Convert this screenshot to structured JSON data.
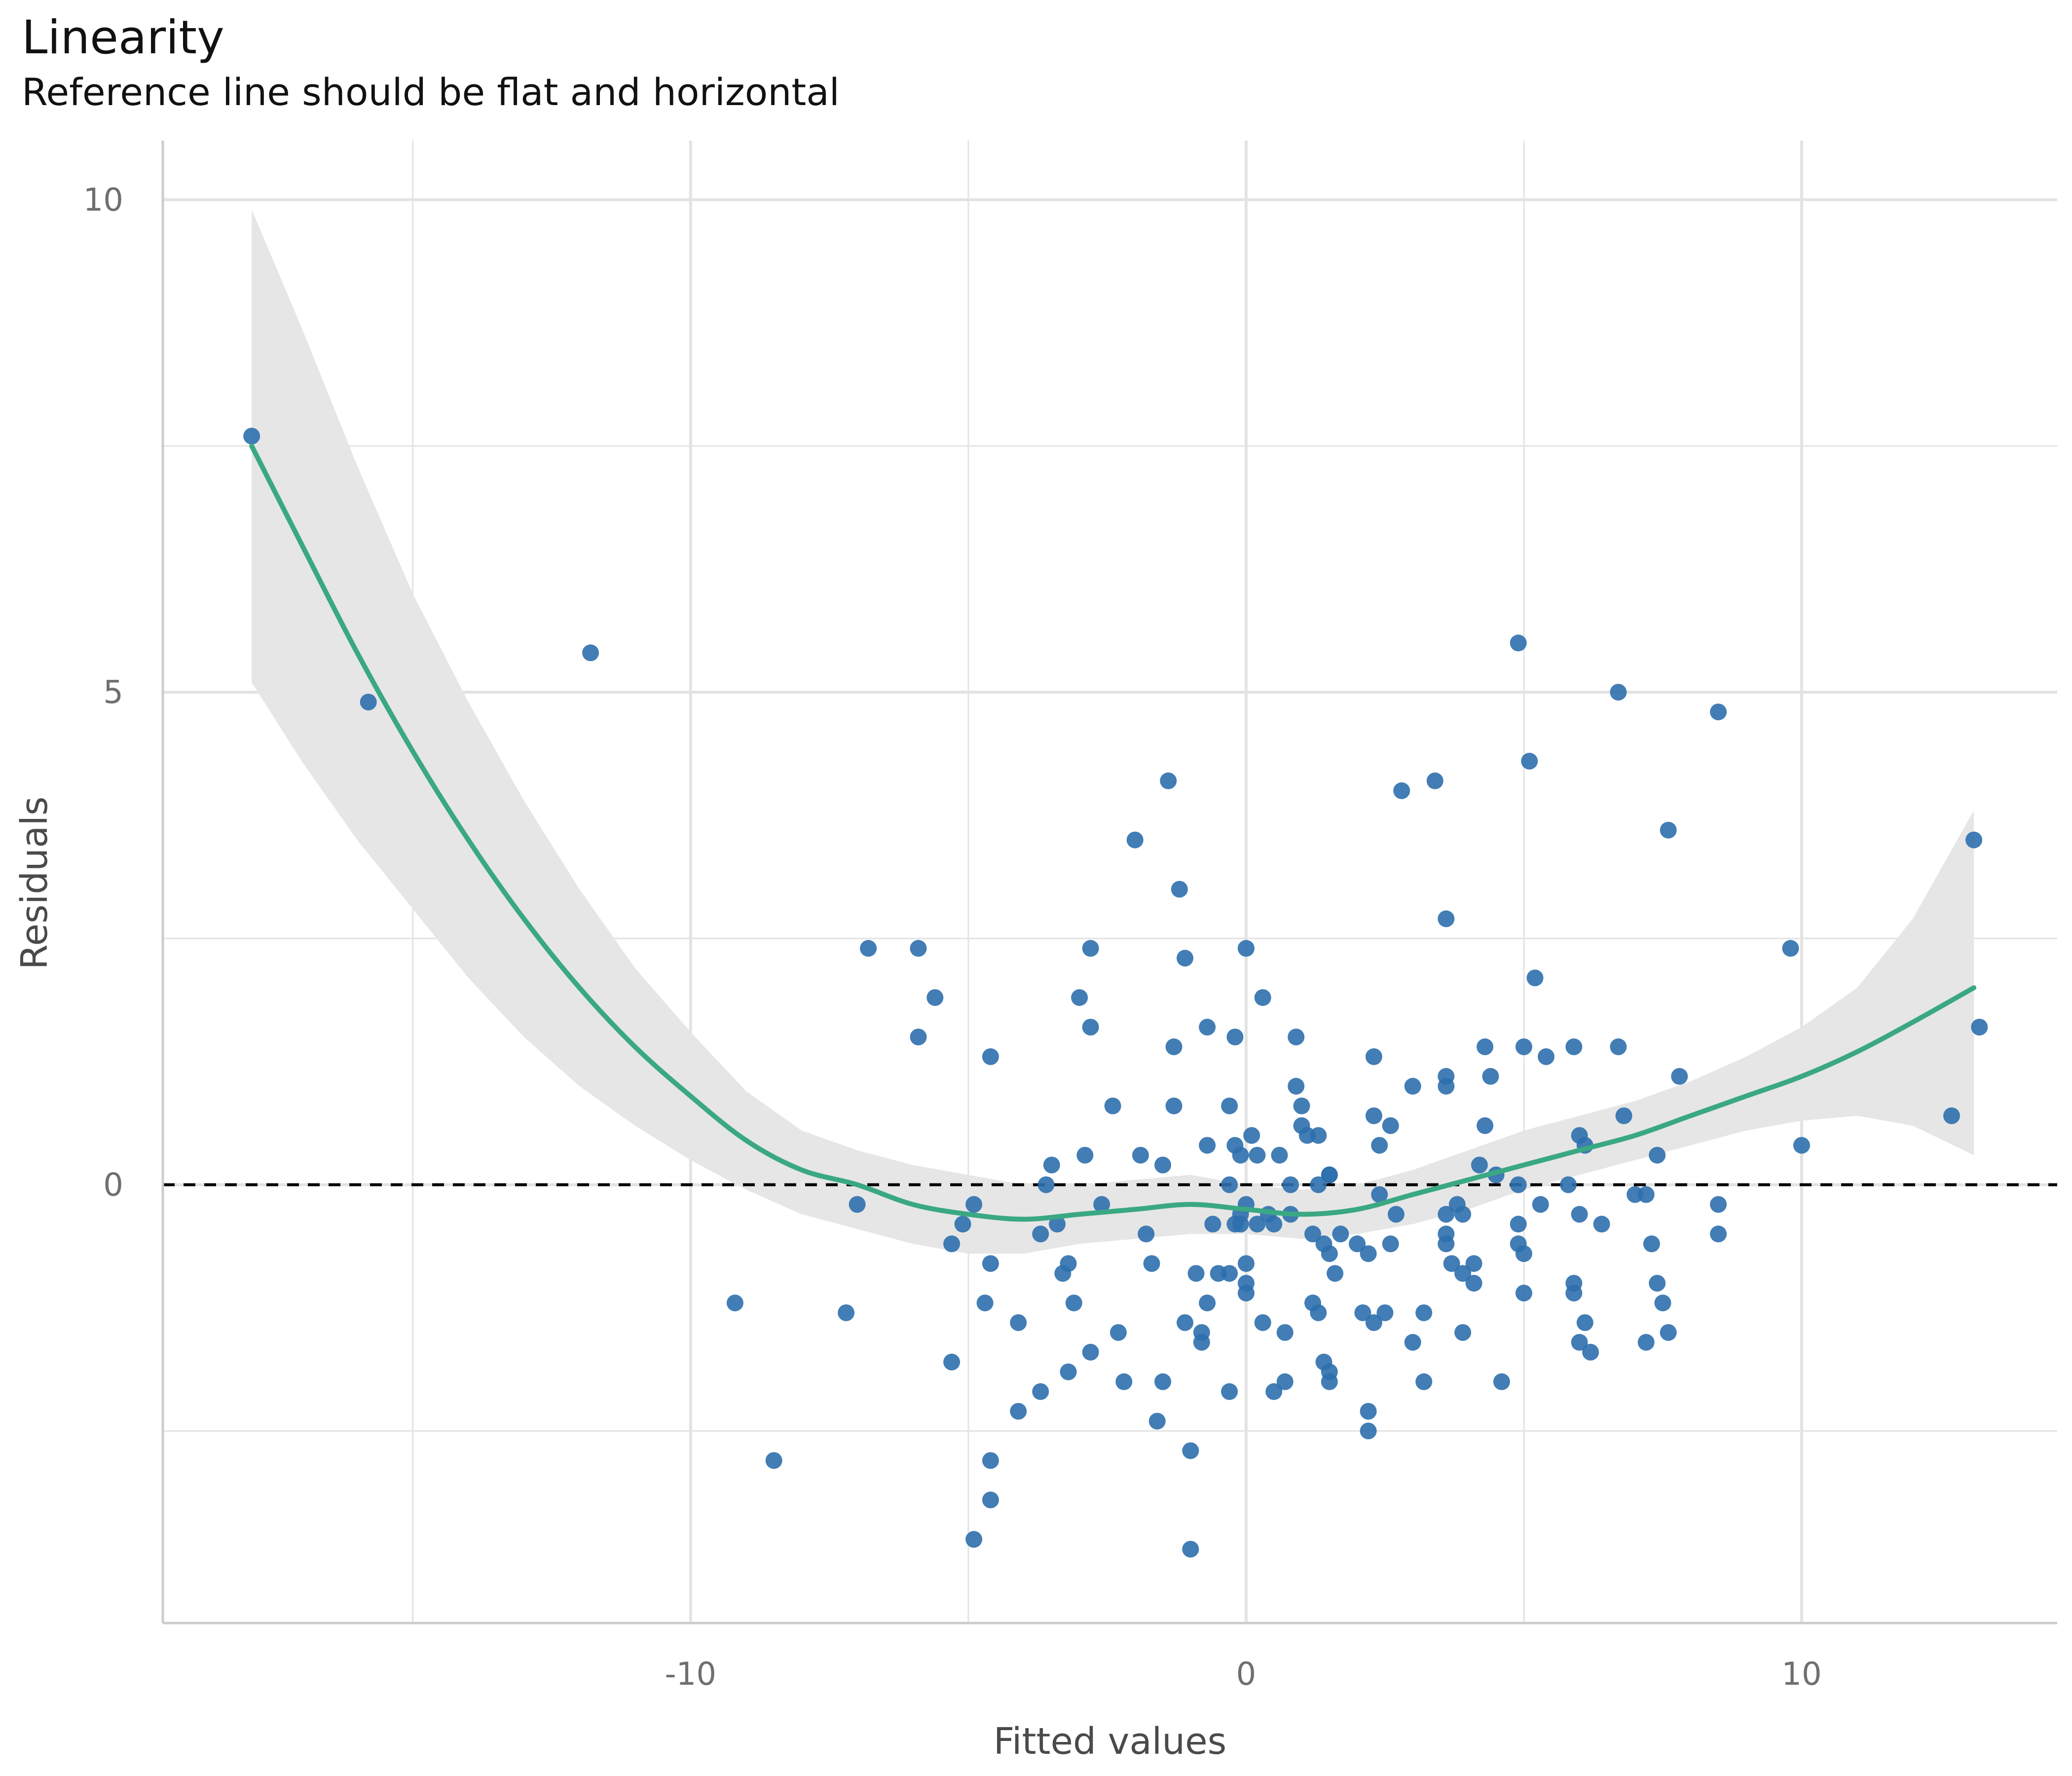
{
  "chart_data": {
    "type": "scatter",
    "title": "Linearity",
    "subtitle": "Reference line should be flat and horizontal",
    "xlabel": "Fitted values",
    "ylabel": "Residuals",
    "xlim": [
      -19.5,
      14.6
    ],
    "ylim": [
      -4.45,
      10.6
    ],
    "x_ticks": [
      -10,
      0,
      10
    ],
    "x_tick_labels": [
      "-10",
      "0",
      "10"
    ],
    "y_ticks": [
      0,
      5,
      10
    ],
    "y_tick_labels": [
      "0",
      "5",
      "10"
    ],
    "x_minor": [
      -15,
      -5,
      5
    ],
    "y_minor": [
      -2.5,
      2.5,
      7.5
    ],
    "grid": true,
    "reference_line_y": 0,
    "colors": {
      "points": "#2e6fad",
      "smooth": "#3aa882",
      "band": "#e6e6e6",
      "grid": "#e3e3e3",
      "reference": "#000000"
    },
    "points": [
      [
        -17.9,
        7.6
      ],
      [
        -15.8,
        4.9
      ],
      [
        -11.8,
        5.4
      ],
      [
        -9.2,
        -1.2
      ],
      [
        -8.5,
        -2.8
      ],
      [
        -7.2,
        -1.3
      ],
      [
        -7.0,
        -0.2
      ],
      [
        -6.8,
        2.4
      ],
      [
        -5.9,
        2.4
      ],
      [
        -5.9,
        1.5
      ],
      [
        -5.6,
        1.9
      ],
      [
        -5.3,
        -0.6
      ],
      [
        -5.3,
        -1.8
      ],
      [
        -5.1,
        -0.4
      ],
      [
        -4.9,
        -0.2
      ],
      [
        -4.9,
        -3.6
      ],
      [
        -4.7,
        -1.2
      ],
      [
        -4.6,
        1.3
      ],
      [
        -4.6,
        -0.8
      ],
      [
        -4.6,
        -2.8
      ],
      [
        -4.6,
        -3.2
      ],
      [
        -4.1,
        -2.3
      ],
      [
        -4.1,
        -1.4
      ],
      [
        -3.7,
        -0.5
      ],
      [
        -3.7,
        -2.1
      ],
      [
        -3.6,
        0.0
      ],
      [
        -3.5,
        0.2
      ],
      [
        -3.4,
        -0.4
      ],
      [
        -3.3,
        -0.9
      ],
      [
        -3.2,
        -0.8
      ],
      [
        -3.2,
        -1.9
      ],
      [
        -3.1,
        -1.2
      ],
      [
        -3.0,
        1.9
      ],
      [
        -2.9,
        0.3
      ],
      [
        -2.8,
        2.4
      ],
      [
        -2.8,
        1.6
      ],
      [
        -2.8,
        -1.7
      ],
      [
        -2.6,
        -0.2
      ],
      [
        -2.4,
        0.8
      ],
      [
        -2.3,
        -1.5
      ],
      [
        -2.2,
        -2.0
      ],
      [
        -2.0,
        3.5
      ],
      [
        -1.9,
        0.3
      ],
      [
        -1.8,
        -0.5
      ],
      [
        -1.7,
        -0.8
      ],
      [
        -1.6,
        -2.4
      ],
      [
        -1.5,
        -2.0
      ],
      [
        -1.5,
        0.2
      ],
      [
        -1.4,
        4.1
      ],
      [
        -1.3,
        1.4
      ],
      [
        -1.3,
        0.8
      ],
      [
        -1.2,
        3.0
      ],
      [
        -1.1,
        2.3
      ],
      [
        -1.1,
        -1.4
      ],
      [
        -1.0,
        -2.7
      ],
      [
        -1.0,
        -3.7
      ],
      [
        -0.9,
        -0.9
      ],
      [
        -0.8,
        -1.5
      ],
      [
        -0.8,
        -1.6
      ],
      [
        -0.7,
        1.6
      ],
      [
        -0.7,
        0.4
      ],
      [
        -0.7,
        -1.2
      ],
      [
        -0.6,
        -0.4
      ],
      [
        -0.5,
        -0.9
      ],
      [
        -0.3,
        0.8
      ],
      [
        -0.3,
        0.0
      ],
      [
        -0.3,
        -0.9
      ],
      [
        -0.3,
        -2.1
      ],
      [
        -0.2,
        0.4
      ],
      [
        -0.2,
        -0.4
      ],
      [
        -0.2,
        1.5
      ],
      [
        -0.1,
        0.3
      ],
      [
        -0.1,
        -0.3
      ],
      [
        -0.1,
        -0.4
      ],
      [
        0.0,
        -0.2
      ],
      [
        0.0,
        -0.8
      ],
      [
        0.0,
        -1.1
      ],
      [
        0.0,
        -1.0
      ],
      [
        0.0,
        2.4
      ],
      [
        0.1,
        0.5
      ],
      [
        0.2,
        0.3
      ],
      [
        0.2,
        -0.4
      ],
      [
        0.3,
        1.9
      ],
      [
        0.3,
        -1.4
      ],
      [
        0.4,
        -0.3
      ],
      [
        0.5,
        -2.1
      ],
      [
        0.5,
        -0.4
      ],
      [
        0.6,
        0.3
      ],
      [
        0.7,
        -1.5
      ],
      [
        0.7,
        -2.0
      ],
      [
        0.8,
        0.0
      ],
      [
        0.8,
        -0.3
      ],
      [
        0.9,
        1.5
      ],
      [
        0.9,
        1.0
      ],
      [
        1.0,
        0.8
      ],
      [
        1.0,
        0.6
      ],
      [
        1.1,
        0.5
      ],
      [
        1.2,
        -0.5
      ],
      [
        1.2,
        -1.2
      ],
      [
        1.3,
        -1.3
      ],
      [
        1.3,
        0.0
      ],
      [
        1.3,
        0.5
      ],
      [
        1.4,
        -1.8
      ],
      [
        1.4,
        -0.6
      ],
      [
        1.5,
        0.1
      ],
      [
        1.5,
        0.1
      ],
      [
        1.5,
        -0.7
      ],
      [
        1.5,
        -1.9
      ],
      [
        1.5,
        -2.0
      ],
      [
        1.6,
        -0.9
      ],
      [
        1.7,
        -0.5
      ],
      [
        2.0,
        -0.6
      ],
      [
        2.1,
        -1.3
      ],
      [
        2.2,
        -0.7
      ],
      [
        2.2,
        -2.3
      ],
      [
        2.2,
        -2.5
      ],
      [
        2.3,
        0.7
      ],
      [
        2.3,
        -1.4
      ],
      [
        2.3,
        1.3
      ],
      [
        2.4,
        0.4
      ],
      [
        2.4,
        -0.1
      ],
      [
        2.5,
        -1.3
      ],
      [
        2.6,
        0.6
      ],
      [
        2.6,
        -0.6
      ],
      [
        2.7,
        -0.3
      ],
      [
        2.8,
        4.0
      ],
      [
        3.0,
        1.0
      ],
      [
        3.0,
        -1.6
      ],
      [
        3.2,
        -2.0
      ],
      [
        3.2,
        -1.3
      ],
      [
        3.4,
        4.1
      ],
      [
        3.6,
        2.7
      ],
      [
        3.6,
        1.1
      ],
      [
        3.6,
        1.0
      ],
      [
        3.6,
        -0.3
      ],
      [
        3.6,
        -0.5
      ],
      [
        3.6,
        -0.6
      ],
      [
        3.7,
        -0.8
      ],
      [
        3.8,
        -0.2
      ],
      [
        3.9,
        -0.3
      ],
      [
        3.9,
        -0.9
      ],
      [
        3.9,
        -1.5
      ],
      [
        4.1,
        -0.8
      ],
      [
        4.1,
        -1.0
      ],
      [
        4.2,
        0.2
      ],
      [
        4.3,
        1.4
      ],
      [
        4.3,
        0.6
      ],
      [
        4.4,
        1.1
      ],
      [
        4.5,
        0.1
      ],
      [
        4.6,
        -2.0
      ],
      [
        4.9,
        0.0
      ],
      [
        4.9,
        -0.4
      ],
      [
        4.9,
        -0.6
      ],
      [
        4.9,
        5.5
      ],
      [
        5.0,
        -0.7
      ],
      [
        5.0,
        -1.1
      ],
      [
        5.0,
        1.4
      ],
      [
        5.1,
        4.3
      ],
      [
        5.2,
        2.1
      ],
      [
        5.3,
        -0.2
      ],
      [
        5.4,
        1.3
      ],
      [
        5.8,
        0.0
      ],
      [
        5.9,
        1.4
      ],
      [
        5.9,
        -1.0
      ],
      [
        5.9,
        -1.1
      ],
      [
        6.0,
        -0.3
      ],
      [
        6.0,
        0.5
      ],
      [
        6.0,
        -1.6
      ],
      [
        6.1,
        -1.4
      ],
      [
        6.1,
        0.4
      ],
      [
        6.2,
        -1.7
      ],
      [
        6.4,
        -0.4
      ],
      [
        6.7,
        5.0
      ],
      [
        6.7,
        1.4
      ],
      [
        6.8,
        0.7
      ],
      [
        7.0,
        -0.1
      ],
      [
        7.2,
        -1.6
      ],
      [
        7.2,
        -0.1
      ],
      [
        7.3,
        -0.6
      ],
      [
        7.4,
        -1.0
      ],
      [
        7.4,
        0.3
      ],
      [
        7.5,
        -1.2
      ],
      [
        7.6,
        3.6
      ],
      [
        7.6,
        -1.5
      ],
      [
        7.8,
        1.1
      ],
      [
        8.5,
        4.8
      ],
      [
        8.5,
        -0.2
      ],
      [
        8.5,
        -0.5
      ],
      [
        9.8,
        2.4
      ],
      [
        10.0,
        0.4
      ],
      [
        12.7,
        0.7
      ],
      [
        13.1,
        3.5
      ],
      [
        13.2,
        1.6
      ]
    ],
    "smooth": {
      "x": [
        -17.9,
        -17.0,
        -16.0,
        -15.0,
        -14.0,
        -13.0,
        -12.0,
        -11.0,
        -10.0,
        -9.0,
        -8.0,
        -7.0,
        -6.0,
        -5.0,
        -4.0,
        -3.0,
        -2.0,
        -1.0,
        0.0,
        1.0,
        2.0,
        3.0,
        4.0,
        5.0,
        6.0,
        7.0,
        8.0,
        9.0,
        10.0,
        11.0,
        12.0,
        13.1
      ],
      "y": [
        7.5,
        6.5,
        5.4,
        4.4,
        3.5,
        2.7,
        2.0,
        1.4,
        0.9,
        0.45,
        0.15,
        0.0,
        -0.2,
        -0.3,
        -0.35,
        -0.3,
        -0.25,
        -0.2,
        -0.25,
        -0.3,
        -0.25,
        -0.1,
        0.05,
        0.2,
        0.35,
        0.5,
        0.7,
        0.9,
        1.1,
        1.35,
        1.65,
        2.0
      ],
      "lo": [
        5.1,
        4.3,
        3.5,
        2.8,
        2.1,
        1.5,
        1.0,
        0.6,
        0.25,
        -0.05,
        -0.3,
        -0.45,
        -0.6,
        -0.7,
        -0.7,
        -0.6,
        -0.55,
        -0.5,
        -0.5,
        -0.55,
        -0.5,
        -0.4,
        -0.25,
        -0.05,
        0.1,
        0.25,
        0.4,
        0.55,
        0.65,
        0.7,
        0.6,
        0.3
      ],
      "hi": [
        9.9,
        8.7,
        7.3,
        6.0,
        4.9,
        3.9,
        3.0,
        2.2,
        1.55,
        0.95,
        0.55,
        0.35,
        0.2,
        0.1,
        0.0,
        0.0,
        0.05,
        0.1,
        0.0,
        -0.05,
        0.0,
        0.15,
        0.35,
        0.55,
        0.7,
        0.85,
        1.05,
        1.3,
        1.6,
        2.0,
        2.7,
        3.8
      ]
    }
  }
}
